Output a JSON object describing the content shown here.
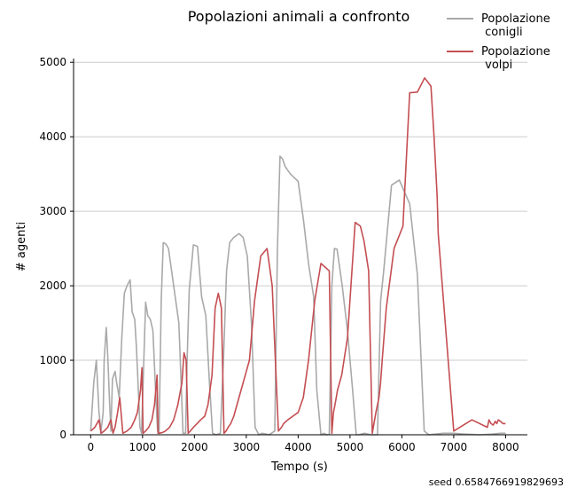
{
  "chart_data": {
    "type": "line",
    "title": "Popolazioni animali a confronto",
    "xlabel": "Tempo (s)",
    "ylabel": "# agenti",
    "xlim": [
      -330,
      8420
    ],
    "ylim": [
      0,
      5050
    ],
    "xticks": [
      0,
      1000,
      2000,
      3000,
      4000,
      5000,
      6000,
      7000,
      8000
    ],
    "yticks": [
      0,
      1000,
      2000,
      3000,
      4000,
      5000
    ],
    "grid": "horizontal",
    "legend_position": "top-right",
    "footer_text": "seed 0.6584766919829693",
    "series": [
      {
        "name": "Popolazione\n conigli",
        "color": "#a9a9a9",
        "x": [
          0,
          60,
          110,
          160,
          200,
          240,
          260,
          300,
          330,
          360,
          390,
          420,
          470,
          500,
          550,
          600,
          650,
          700,
          760,
          800,
          850,
          880,
          920,
          950,
          980,
          1060,
          1100,
          1150,
          1200,
          1250,
          1290,
          1320,
          1360,
          1400,
          1450,
          1500,
          1560,
          1620,
          1700,
          1780,
          1830,
          1860,
          1900,
          1980,
          2060,
          2140,
          2220,
          2290,
          2350,
          2420,
          2500,
          2560,
          2620,
          2680,
          2760,
          2860,
          2940,
          3020,
          3100,
          3170,
          3240,
          3300,
          3380,
          3440,
          3550,
          3600,
          3650,
          3700,
          3750,
          3850,
          4000,
          4100,
          4200,
          4300,
          4360,
          4440,
          4500,
          4550,
          4600,
          4650,
          4700,
          4750,
          4850,
          4950,
          5050,
          5120,
          5170,
          5220,
          5280,
          5400,
          5530,
          5590,
          5650,
          5800,
          5950,
          6150,
          6300,
          6430,
          6520,
          6650,
          6800,
          7000,
          7200,
          7500,
          7750,
          7900,
          8000
        ],
        "y": [
          50,
          700,
          1000,
          300,
          50,
          300,
          1000,
          1440,
          1050,
          500,
          50,
          750,
          850,
          700,
          500,
          1300,
          1900,
          2000,
          2080,
          1650,
          1550,
          1200,
          600,
          100,
          20,
          1780,
          1600,
          1550,
          1400,
          600,
          50,
          20,
          1800,
          2580,
          2560,
          2500,
          2200,
          1900,
          1500,
          20,
          20,
          1000,
          1950,
          2550,
          2530,
          1850,
          1600,
          700,
          20,
          0,
          20,
          1000,
          2200,
          2580,
          2650,
          2700,
          2650,
          2400,
          1500,
          100,
          0,
          20,
          10,
          0,
          50,
          2500,
          3740,
          3700,
          3600,
          3500,
          3400,
          2900,
          2300,
          1850,
          600,
          0,
          20,
          0,
          10,
          2000,
          2500,
          2490,
          2000,
          1400,
          600,
          0,
          0,
          10,
          20,
          0,
          0,
          1800,
          2200,
          3350,
          3420,
          3100,
          2150,
          50,
          0,
          10,
          20,
          20,
          10,
          0,
          10,
          20,
          20
        ]
      },
      {
        "name": "Popolazione\n volpi",
        "color": "#c44e52",
        "x": [
          0,
          80,
          160,
          200,
          260,
          330,
          390,
          430,
          470,
          520,
          560,
          620,
          700,
          780,
          850,
          900,
          960,
          990,
          1010,
          1060,
          1120,
          1180,
          1230,
          1280,
          1300,
          1320,
          1380,
          1440,
          1520,
          1600,
          1680,
          1760,
          1800,
          1840,
          1880,
          1920,
          1980,
          2050,
          2120,
          2200,
          2260,
          2340,
          2400,
          2460,
          2520,
          2570,
          2610,
          2650,
          2700,
          2760,
          2820,
          2900,
          2980,
          3060,
          3160,
          3280,
          3400,
          3500,
          3620,
          3680,
          3720,
          3800,
          3900,
          4000,
          4100,
          4200,
          4320,
          4440,
          4520,
          4600,
          4650,
          4680,
          4710,
          4760,
          4840,
          4950,
          5100,
          5200,
          5270,
          5360,
          5430,
          5500,
          5560,
          5590,
          5620,
          5700,
          5850,
          6020,
          6150,
          6300,
          6440,
          6560,
          6620,
          6680,
          6700,
          7000,
          7350,
          7650,
          7680,
          7720,
          7760,
          7800,
          7830,
          7860,
          7900,
          7950,
          8000
        ],
        "y": [
          50,
          100,
          200,
          20,
          50,
          100,
          200,
          20,
          100,
          300,
          500,
          20,
          50,
          100,
          200,
          300,
          600,
          900,
          20,
          50,
          100,
          200,
          400,
          800,
          20,
          20,
          30,
          50,
          100,
          200,
          400,
          700,
          1100,
          1000,
          20,
          50,
          100,
          150,
          200,
          250,
          400,
          800,
          1700,
          1900,
          1700,
          20,
          50,
          100,
          150,
          250,
          400,
          600,
          800,
          1000,
          1800,
          2400,
          2500,
          2000,
          50,
          100,
          150,
          200,
          250,
          300,
          500,
          1000,
          1800,
          2300,
          2250,
          2200,
          20,
          300,
          400,
          600,
          800,
          1300,
          2850,
          2800,
          2600,
          2200,
          20,
          300,
          500,
          700,
          1000,
          1700,
          2500,
          2800,
          4590,
          4600,
          4790,
          4680,
          4000,
          3200,
          2700,
          50,
          200,
          100,
          200,
          150,
          130,
          180,
          150,
          200,
          180,
          150,
          150
        ]
      }
    ]
  }
}
